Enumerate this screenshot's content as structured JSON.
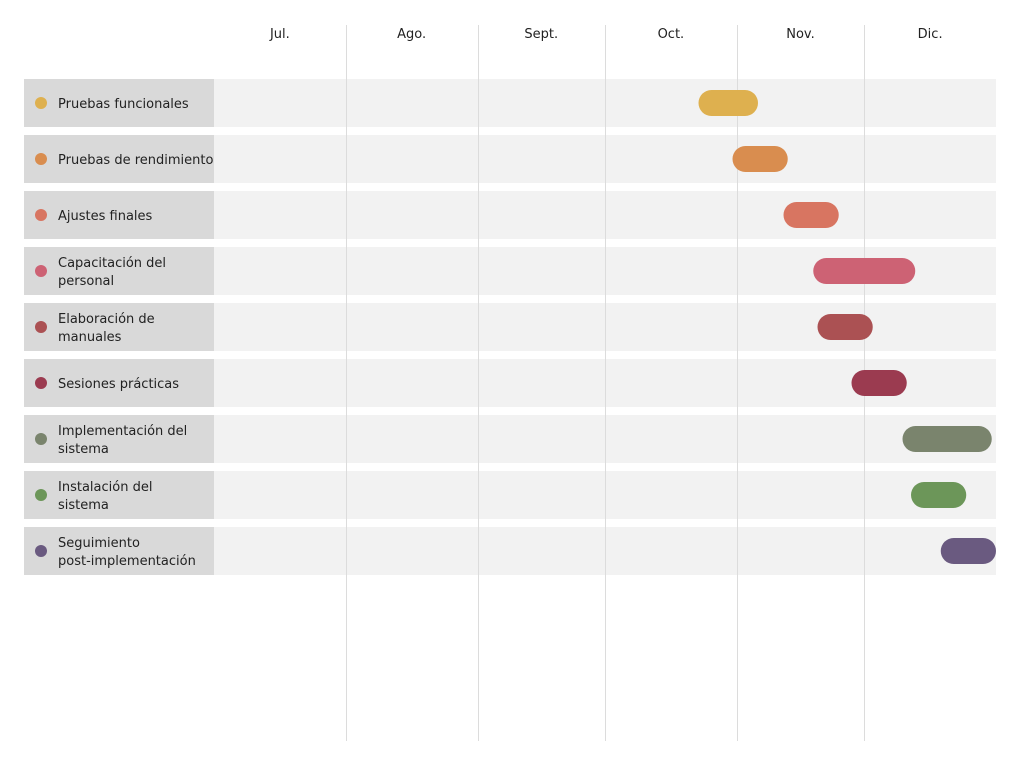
{
  "chart_data": {
    "type": "gantt",
    "title": "",
    "months": [
      "Jul.",
      "Ago.",
      "Sept.",
      "Oct.",
      "Nov.",
      "Dic."
    ],
    "grid": "vertical month lines",
    "tasks": [
      {
        "label": "Pruebas funcionales",
        "start": "2023-10-23",
        "end": "2023-11-06",
        "color": "#deb04f"
      },
      {
        "label": "Pruebas de rendimiento",
        "start": "2023-10-31",
        "end": "2023-11-13",
        "color": "#d98d4f"
      },
      {
        "label": "Ajustes finales",
        "start": "2023-11-12",
        "end": "2023-11-25",
        "color": "#d87561"
      },
      {
        "label": "Capacitación del personal",
        "start": "2023-11-19",
        "end": "2023-12-13",
        "color": "#cd6274"
      },
      {
        "label": "Elaboración de manuales",
        "start": "2023-11-20",
        "end": "2023-12-03",
        "color": "#ab5153"
      },
      {
        "label": "Sesiones prácticas",
        "start": "2023-11-28",
        "end": "2023-12-11",
        "color": "#9b3b50"
      },
      {
        "label": "Implementación del sistema",
        "start": "2023-12-10",
        "end": "2023-12-31",
        "color": "#7a846d"
      },
      {
        "label": "Instalación del sistema",
        "start": "2023-12-12",
        "end": "2023-12-25",
        "color": "#6c9659"
      },
      {
        "label": "Seguimiento post-implementación",
        "start": "2023-12-19",
        "end": "2024-01-01",
        "color": "#6a5a80"
      }
    ]
  }
}
